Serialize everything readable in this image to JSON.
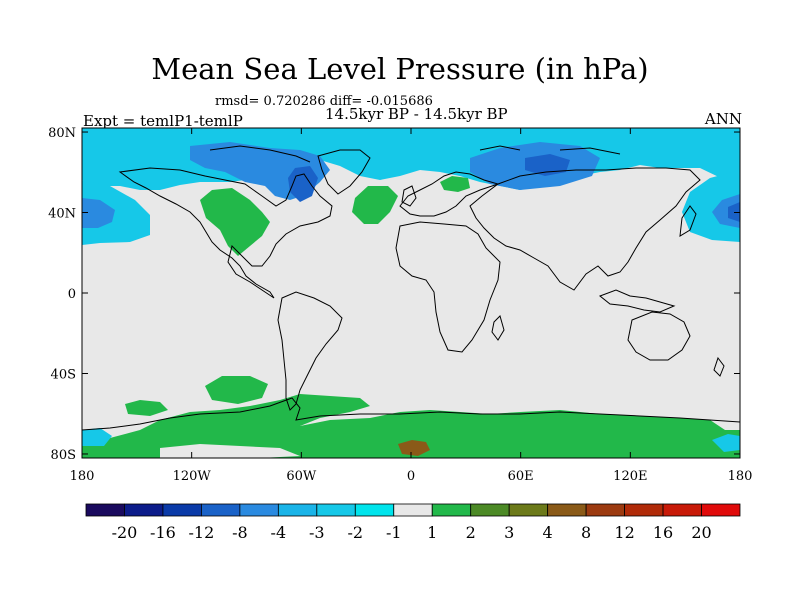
{
  "title": "Mean Sea Level Pressure (in hPa)",
  "stats": "rmsd= 0.720286 diff= -0.015686",
  "expt": "Expt = temlP1-temlP",
  "period": "14.5kyr BP - 14.5kyr BP",
  "season": "ANN",
  "lat_ticks": [
    {
      "value": 80,
      "label": "80N"
    },
    {
      "value": 40,
      "label": "40N"
    },
    {
      "value": 0,
      "label": "0"
    },
    {
      "value": -40,
      "label": "40S"
    },
    {
      "value": -80,
      "label": "80S"
    }
  ],
  "lon_ticks": [
    {
      "value": -180,
      "label": "180"
    },
    {
      "value": -120,
      "label": "120W"
    },
    {
      "value": -60,
      "label": "60W"
    },
    {
      "value": 0,
      "label": "0"
    },
    {
      "value": 60,
      "label": "60E"
    },
    {
      "value": 120,
      "label": "120E"
    },
    {
      "value": 180,
      "label": "180"
    }
  ],
  "colorbar": {
    "colors": [
      "#1a0a5e",
      "#0c1c8a",
      "#0a3aa8",
      "#1a62c8",
      "#2a8ae0",
      "#1ab4e8",
      "#16c8e8",
      "#00e4ec",
      "#e8e8e8",
      "#22b84a",
      "#4c8a26",
      "#6c7a1a",
      "#8a5a18",
      "#9c3a10",
      "#b02a08",
      "#c81a08",
      "#e00a0a"
    ],
    "labels": [
      "-20",
      "-16",
      "-12",
      "-8",
      "-4",
      "-3",
      "-2",
      "-1",
      "1",
      "2",
      "3",
      "4",
      "8",
      "12",
      "16",
      "20"
    ]
  },
  "field_colors": {
    "background": "#e8e8e8",
    "light_blue": "#16c8e8",
    "mid_blue": "#2a8ae0",
    "dark_blue": "#1a62c8",
    "green": "#22b84a",
    "brown": "#8a5a18"
  }
}
